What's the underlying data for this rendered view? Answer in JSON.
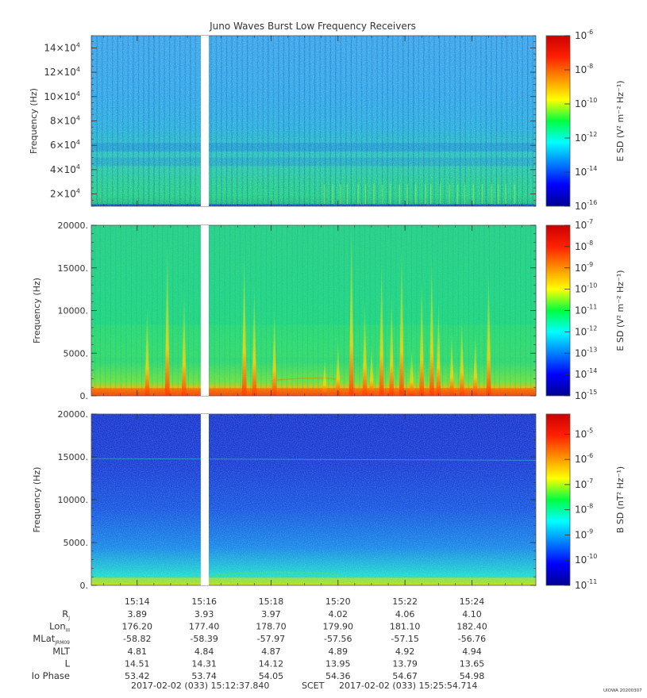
{
  "chart_data": [
    {
      "type": "heatmap",
      "title": "Juno Waves Burst Low Frequency Receivers",
      "ylabel": "Frequency (Hz)",
      "ylim": [
        10000,
        150000
      ],
      "y_ticks": [
        {
          "v": 20000,
          "m": "2",
          "e": "4"
        },
        {
          "v": 40000,
          "m": "4",
          "e": "4"
        },
        {
          "v": 60000,
          "m": "6",
          "e": "4"
        },
        {
          "v": 80000,
          "m": "8",
          "e": "4"
        },
        {
          "v": 100000,
          "m": "10",
          "e": "4"
        },
        {
          "v": 120000,
          "m": "12",
          "e": "4"
        },
        {
          "v": 140000,
          "m": "14",
          "e": "4"
        }
      ],
      "colorbar": {
        "label": "E SD (V² m⁻² Hz⁻¹)",
        "log": true,
        "range": [
          -16,
          -6
        ],
        "ticks": [
          -6,
          -8,
          -10,
          -12,
          -14,
          -16
        ]
      }
    },
    {
      "type": "heatmap",
      "ylabel": "Frequency (Hz)",
      "ylim": [
        0,
        20000
      ],
      "y_ticks": [
        {
          "v": 0,
          "label": "0."
        },
        {
          "v": 5000,
          "label": "5000."
        },
        {
          "v": 10000,
          "label": "10000."
        },
        {
          "v": 15000,
          "label": "15000."
        },
        {
          "v": 20000,
          "label": "20000."
        }
      ],
      "colorbar": {
        "label": "E SD (V² m⁻² Hz⁻¹)",
        "log": true,
        "range": [
          -15,
          -7
        ],
        "ticks": [
          -7,
          -8,
          -9,
          -10,
          -11,
          -12,
          -13,
          -14,
          -15
        ]
      }
    },
    {
      "type": "heatmap",
      "ylabel": "Frequency (Hz)",
      "ylim": [
        0,
        20000
      ],
      "y_ticks": [
        {
          "v": 0,
          "label": "0."
        },
        {
          "v": 5000,
          "label": "5000."
        },
        {
          "v": 10000,
          "label": "10000."
        },
        {
          "v": 15000,
          "label": "15000."
        },
        {
          "v": 20000,
          "label": "20000."
        }
      ],
      "colorbar": {
        "label": "B SD (nT² Hz⁻¹)",
        "log": true,
        "range": [
          -11,
          -4.2
        ],
        "ticks": [
          -5,
          -6,
          -7,
          -8,
          -9,
          -10,
          -11
        ]
      }
    }
  ],
  "time_axis": {
    "start_min": 912.63,
    "end_min": 925.91,
    "gap_min": [
      915.9,
      916.14
    ],
    "ticks": [
      {
        "min": 914,
        "label": "15:14"
      },
      {
        "min": 916,
        "label": "15:16"
      },
      {
        "min": 918,
        "label": "15:18"
      },
      {
        "min": 920,
        "label": "15:20"
      },
      {
        "min": 922,
        "label": "15:22"
      },
      {
        "min": 924,
        "label": "15:24"
      }
    ]
  },
  "ephemeris": [
    {
      "label": "R",
      "sub": "J",
      "values": [
        "3.89",
        "3.93",
        "3.97",
        "4.02",
        "4.06",
        "4.10"
      ]
    },
    {
      "label": "Lon",
      "sub": "III",
      "values": [
        "176.20",
        "177.40",
        "178.70",
        "179.90",
        "181.10",
        "182.40"
      ]
    },
    {
      "label": "MLat",
      "sub": "JRM09",
      "values": [
        "-58.82",
        "-58.39",
        "-57.97",
        "-57.56",
        "-57.15",
        "-56.76"
      ]
    },
    {
      "label": "MLT",
      "sub": "",
      "values": [
        "4.81",
        "4.84",
        "4.87",
        "4.89",
        "4.92",
        "4.94"
      ]
    },
    {
      "label": "L",
      "sub": "",
      "values": [
        "14.51",
        "14.31",
        "14.12",
        "13.95",
        "13.79",
        "13.65"
      ]
    },
    {
      "label": "Io Phase",
      "sub": "",
      "values": [
        "53.42",
        "53.74",
        "54.05",
        "54.36",
        "54.67",
        "54.98"
      ]
    }
  ],
  "footer": {
    "start_time": "2017-02-02 (033) 15:12:37.840",
    "scet": "SCET",
    "end_time": "2017-02-02 (033) 15:25:54.714",
    "stamp": "UIOWA 20200307"
  }
}
